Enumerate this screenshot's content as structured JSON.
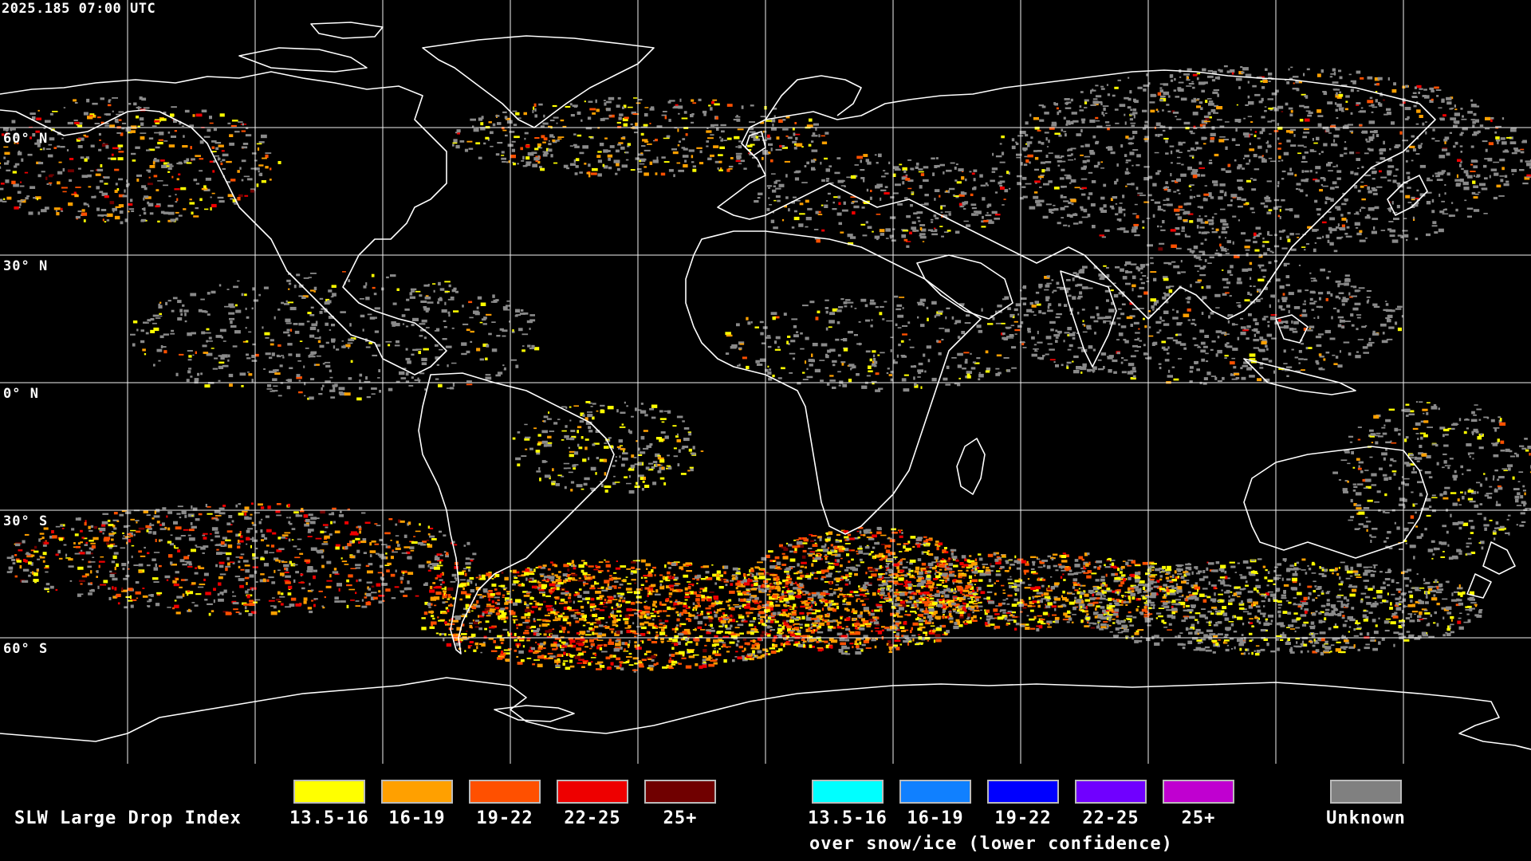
{
  "timestamp": "2025.185 07:00 UTC",
  "lat_labels": [
    "60° N",
    "30° N",
    "0° N",
    "30° S",
    "60° S"
  ],
  "legend": {
    "title": "SLW Large Drop Index",
    "main_classes": [
      {
        "label": "13.5-16",
        "color": "#ffff00"
      },
      {
        "label": "16-19",
        "color": "#ffa000"
      },
      {
        "label": "19-22",
        "color": "#ff5000"
      },
      {
        "label": "22-25",
        "color": "#ee0000"
      },
      {
        "label": "25+",
        "color": "#700000"
      }
    ],
    "snow_classes": [
      {
        "label": "13.5-16",
        "color": "#00ffff"
      },
      {
        "label": "16-19",
        "color": "#1080ff"
      },
      {
        "label": "19-22",
        "color": "#0000ff"
      },
      {
        "label": "22-25",
        "color": "#7000ff"
      },
      {
        "label": "25+",
        "color": "#c000d0"
      }
    ],
    "snow_note": "over snow/ice (lower confidence)",
    "unknown": {
      "label": "Unknown",
      "color": "#808080"
    }
  }
}
